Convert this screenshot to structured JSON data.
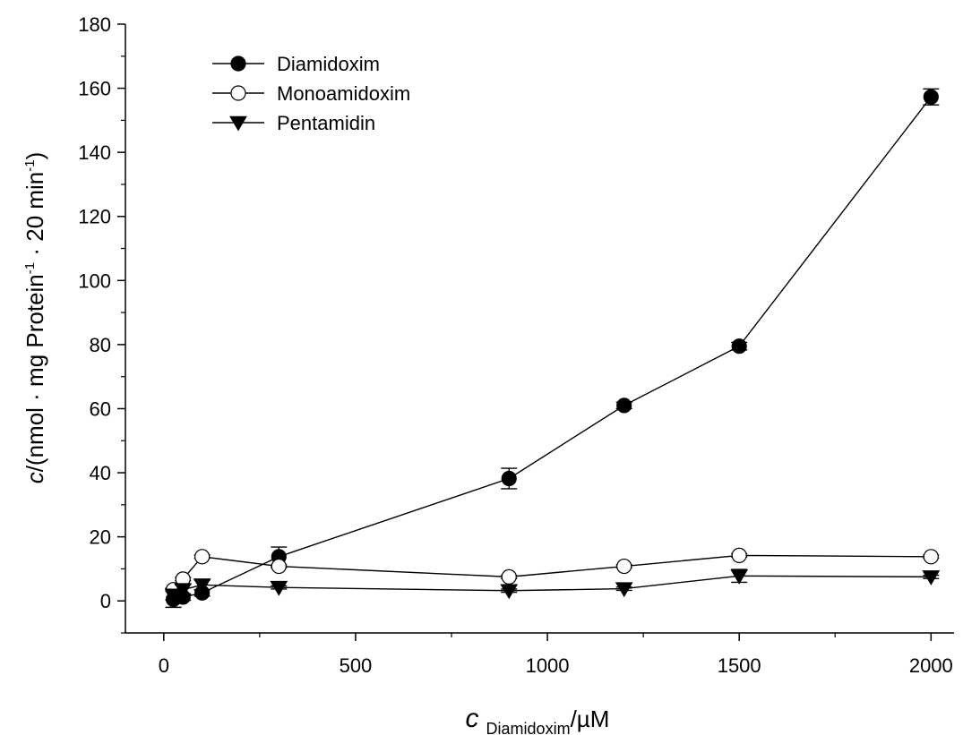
{
  "chart_data": {
    "type": "scatter",
    "title": "",
    "xlabel": {
      "italic": "c",
      "sub": "Diamidoxim",
      "rest": "/µM"
    },
    "ylabel": {
      "italic": "c",
      "rest1": "/(nmol · mg Protein",
      "sup1": "-1",
      "rest2": " · 20 min",
      "sup2": "-1",
      "rest3": ")"
    },
    "xlim": [
      -100,
      2060
    ],
    "ylim": [
      -10,
      180
    ],
    "x_ticks": [
      0,
      500,
      1000,
      1500,
      2000
    ],
    "x_tick_labels": [
      "0",
      "500",
      "1000",
      "1500",
      "2000"
    ],
    "y_ticks": [
      0,
      20,
      40,
      60,
      80,
      100,
      120,
      140,
      160,
      180
    ],
    "y_tick_labels": [
      "0",
      "20",
      "40",
      "60",
      "80",
      "100",
      "120",
      "140",
      "160",
      "180"
    ],
    "grid": false,
    "legend_position": "top-left",
    "series": [
      {
        "name": "Diamidoxim",
        "marker": "filled-circle",
        "color": "#000000",
        "x": [
          25,
          50,
          100,
          300,
          900,
          1200,
          1500,
          2000
        ],
        "y": [
          0.5,
          1.2,
          2.5,
          13.8,
          38.2,
          61.0,
          79.5,
          157.3
        ],
        "err": [
          2.5,
          1.0,
          1.0,
          3.0,
          3.2,
          1.0,
          1.2,
          2.5
        ]
      },
      {
        "name": "Monoamidoxim",
        "marker": "open-circle",
        "color": "#000000",
        "x": [
          25,
          50,
          100,
          300,
          900,
          1200,
          1500,
          2000
        ],
        "y": [
          3.5,
          6.8,
          13.8,
          10.8,
          7.5,
          10.8,
          14.2,
          13.8
        ],
        "err": [
          0.5,
          0.5,
          0.5,
          0.5,
          0.5,
          0.5,
          0.5,
          0.5
        ]
      },
      {
        "name": "Pentamidin",
        "marker": "filled-triangle-down",
        "color": "#000000",
        "x": [
          25,
          50,
          100,
          300,
          900,
          1200,
          1500,
          2000
        ],
        "y": [
          1.8,
          3.5,
          5.0,
          4.2,
          3.2,
          3.8,
          7.8,
          7.5
        ],
        "err": [
          1.5,
          1.5,
          1.5,
          0.5,
          0.5,
          0.5,
          2.0,
          0.5
        ]
      }
    ]
  }
}
